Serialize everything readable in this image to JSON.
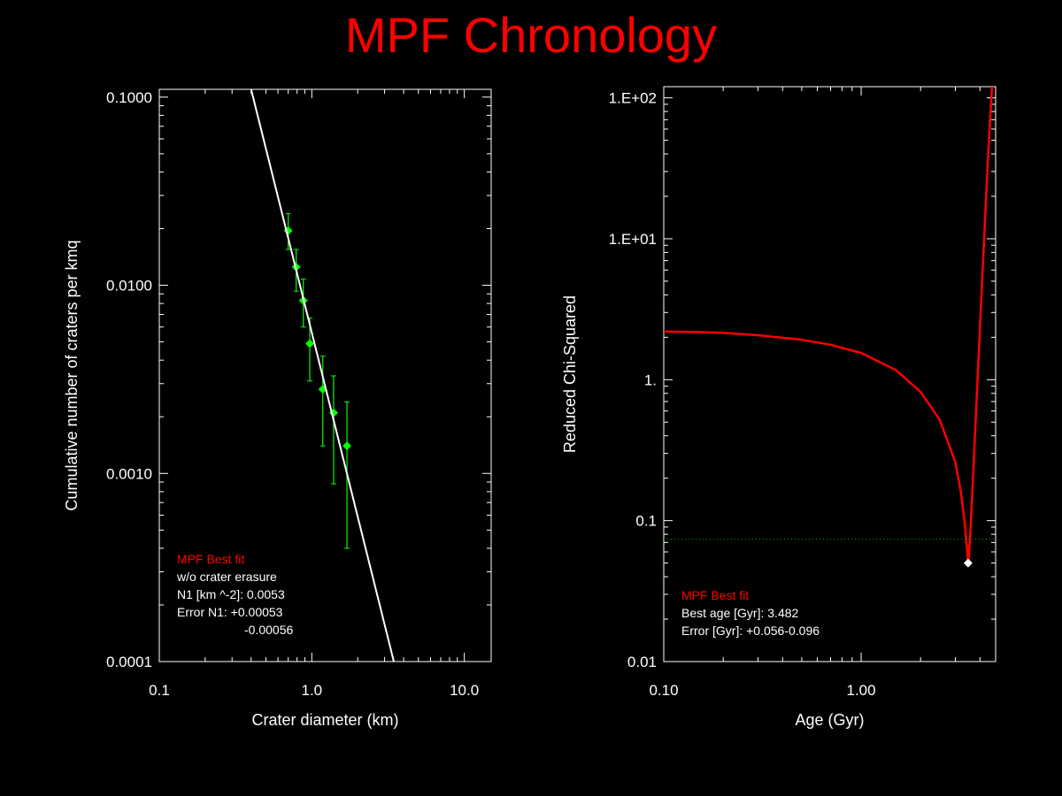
{
  "page": {
    "title": "MPF Chronology",
    "title_color": "#ff0000"
  },
  "chart_data": [
    {
      "type": "scatter",
      "xlabel": "Crater diameter (km)",
      "ylabel": "Cumulative number of craters per kmq",
      "xscale": "log",
      "yscale": "log",
      "xlim": [
        0.1,
        15
      ],
      "ylim": [
        0.0001,
        0.11
      ],
      "xticks": [
        {
          "value": 0.1,
          "label": "0.1"
        },
        {
          "value": 1,
          "label": "1.0"
        },
        {
          "value": 10,
          "label": "10.0"
        }
      ],
      "yticks": [
        {
          "value": 0.0001,
          "label": "0.0001"
        },
        {
          "value": 0.001,
          "label": "0.0010"
        },
        {
          "value": 0.01,
          "label": "0.0100"
        },
        {
          "value": 0.1,
          "label": "0.1000"
        }
      ],
      "grid": false,
      "series": [
        {
          "kind": "points_with_errorbars",
          "color": "#00ff00",
          "marker": "diamond",
          "points": [
            {
              "x": 0.7,
              "y": 0.0195,
              "y_low": 0.0155,
              "y_high": 0.024
            },
            {
              "x": 0.79,
              "y": 0.0125,
              "y_low": 0.0093,
              "y_high": 0.0155
            },
            {
              "x": 0.88,
              "y": 0.0083,
              "y_low": 0.006,
              "y_high": 0.0108
            },
            {
              "x": 0.97,
              "y": 0.0049,
              "y_low": 0.0031,
              "y_high": 0.0067
            },
            {
              "x": 1.18,
              "y": 0.0028,
              "y_low": 0.0014,
              "y_high": 0.0042
            },
            {
              "x": 1.39,
              "y": 0.0021,
              "y_low": 0.00088,
              "y_high": 0.0033
            },
            {
              "x": 1.7,
              "y": 0.0014,
              "y_low": 0.0004,
              "y_high": 0.0024
            }
          ]
        },
        {
          "kind": "line",
          "color": "#ffffff",
          "points": [
            {
              "x": 0.4,
              "y": 0.11
            },
            {
              "x": 3.45,
              "y": 0.0001
            }
          ]
        }
      ],
      "annotations": {
        "heading": "MPF Best fit",
        "heading_color": "#ff0000",
        "lines": [
          "w/o crater erasure",
          "N1 [km ^-2]: 0.0053",
          "Error N1: +0.00053",
          "-0.00056"
        ]
      }
    },
    {
      "type": "line",
      "xlabel": "Age (Gyr)",
      "ylabel": "Reduced Chi-Squared",
      "xscale": "log",
      "yscale": "log",
      "xlim": [
        0.1,
        4.8
      ],
      "ylim": [
        0.01,
        120
      ],
      "xticks": [
        {
          "value": 0.1,
          "label": "0.10"
        },
        {
          "value": 1,
          "label": "1.00"
        }
      ],
      "yticks": [
        {
          "value": 0.01,
          "label": "0.01"
        },
        {
          "value": 0.1,
          "label": "0.1"
        },
        {
          "value": 1,
          "label": "1."
        },
        {
          "value": 10,
          "label": "1.E+01"
        },
        {
          "value": 100,
          "label": "1.E+02"
        }
      ],
      "grid": false,
      "series": [
        {
          "kind": "curve",
          "color": "#ff0000",
          "x": [
            0.1,
            0.15,
            0.2,
            0.3,
            0.5,
            0.7,
            1.0,
            1.5,
            2.0,
            2.5,
            3.0,
            3.2,
            3.35,
            3.45,
            3.482,
            3.52,
            3.6,
            3.8,
            4.1,
            4.4,
            4.6
          ],
          "y": [
            2.2,
            2.18,
            2.15,
            2.07,
            1.92,
            1.77,
            1.55,
            1.17,
            0.82,
            0.52,
            0.26,
            0.16,
            0.095,
            0.06,
            0.05,
            0.057,
            0.1,
            0.5,
            5.0,
            40.0,
            120.0
          ]
        },
        {
          "kind": "reference_line",
          "style": "dotted",
          "color": "#00aa00",
          "y": 0.074
        },
        {
          "kind": "best_point",
          "color": "#ffffff",
          "marker": "diamond",
          "x": 3.482,
          "y": 0.05
        }
      ],
      "annotations": {
        "heading": "MPF Best fit",
        "heading_color": "#ff0000",
        "lines": [
          "Best age [Gyr]: 3.482",
          "Error [Gyr]: +0.056-0.096"
        ]
      }
    }
  ]
}
